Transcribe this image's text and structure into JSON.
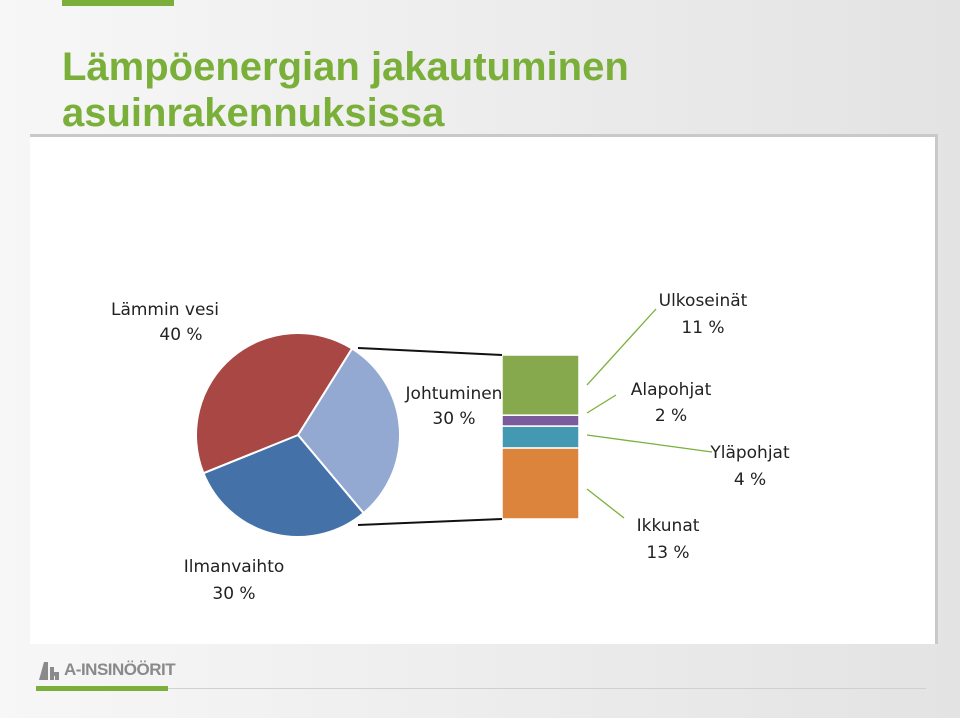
{
  "slide": {
    "title_line1": "Lämpöenergian jakautuminen",
    "title_line2": "asuinrakennuksissa",
    "logo_text": "A-INSINÖÖRIT",
    "accent_color": "#7ab03a"
  },
  "chart_data": {
    "type": "bar-of-pie",
    "pie": [
      {
        "name": "Lämmin vesi",
        "value": 40,
        "label": "40 %",
        "color": "#a84744"
      },
      {
        "name": "Johtuminen",
        "value": 30,
        "label": "30 %",
        "color": "#94a9d2"
      },
      {
        "name": "Ilmanvaihto",
        "value": 30,
        "label": "30 %",
        "color": "#4472a8"
      }
    ],
    "bar_of": "Johtuminen",
    "bar": [
      {
        "name": "Ikkunat",
        "value": 13,
        "label": "13 %",
        "color": "#dd843c"
      },
      {
        "name": "Yläpohjat",
        "value": 4,
        "label": "4 %",
        "color": "#4499b2"
      },
      {
        "name": "Alapohjat",
        "value": 2,
        "label": "2 %",
        "color": "#7a5c9d"
      },
      {
        "name": "Ulkoseinät",
        "value": 11,
        "label": "11 %",
        "color": "#86a94d"
      }
    ]
  }
}
